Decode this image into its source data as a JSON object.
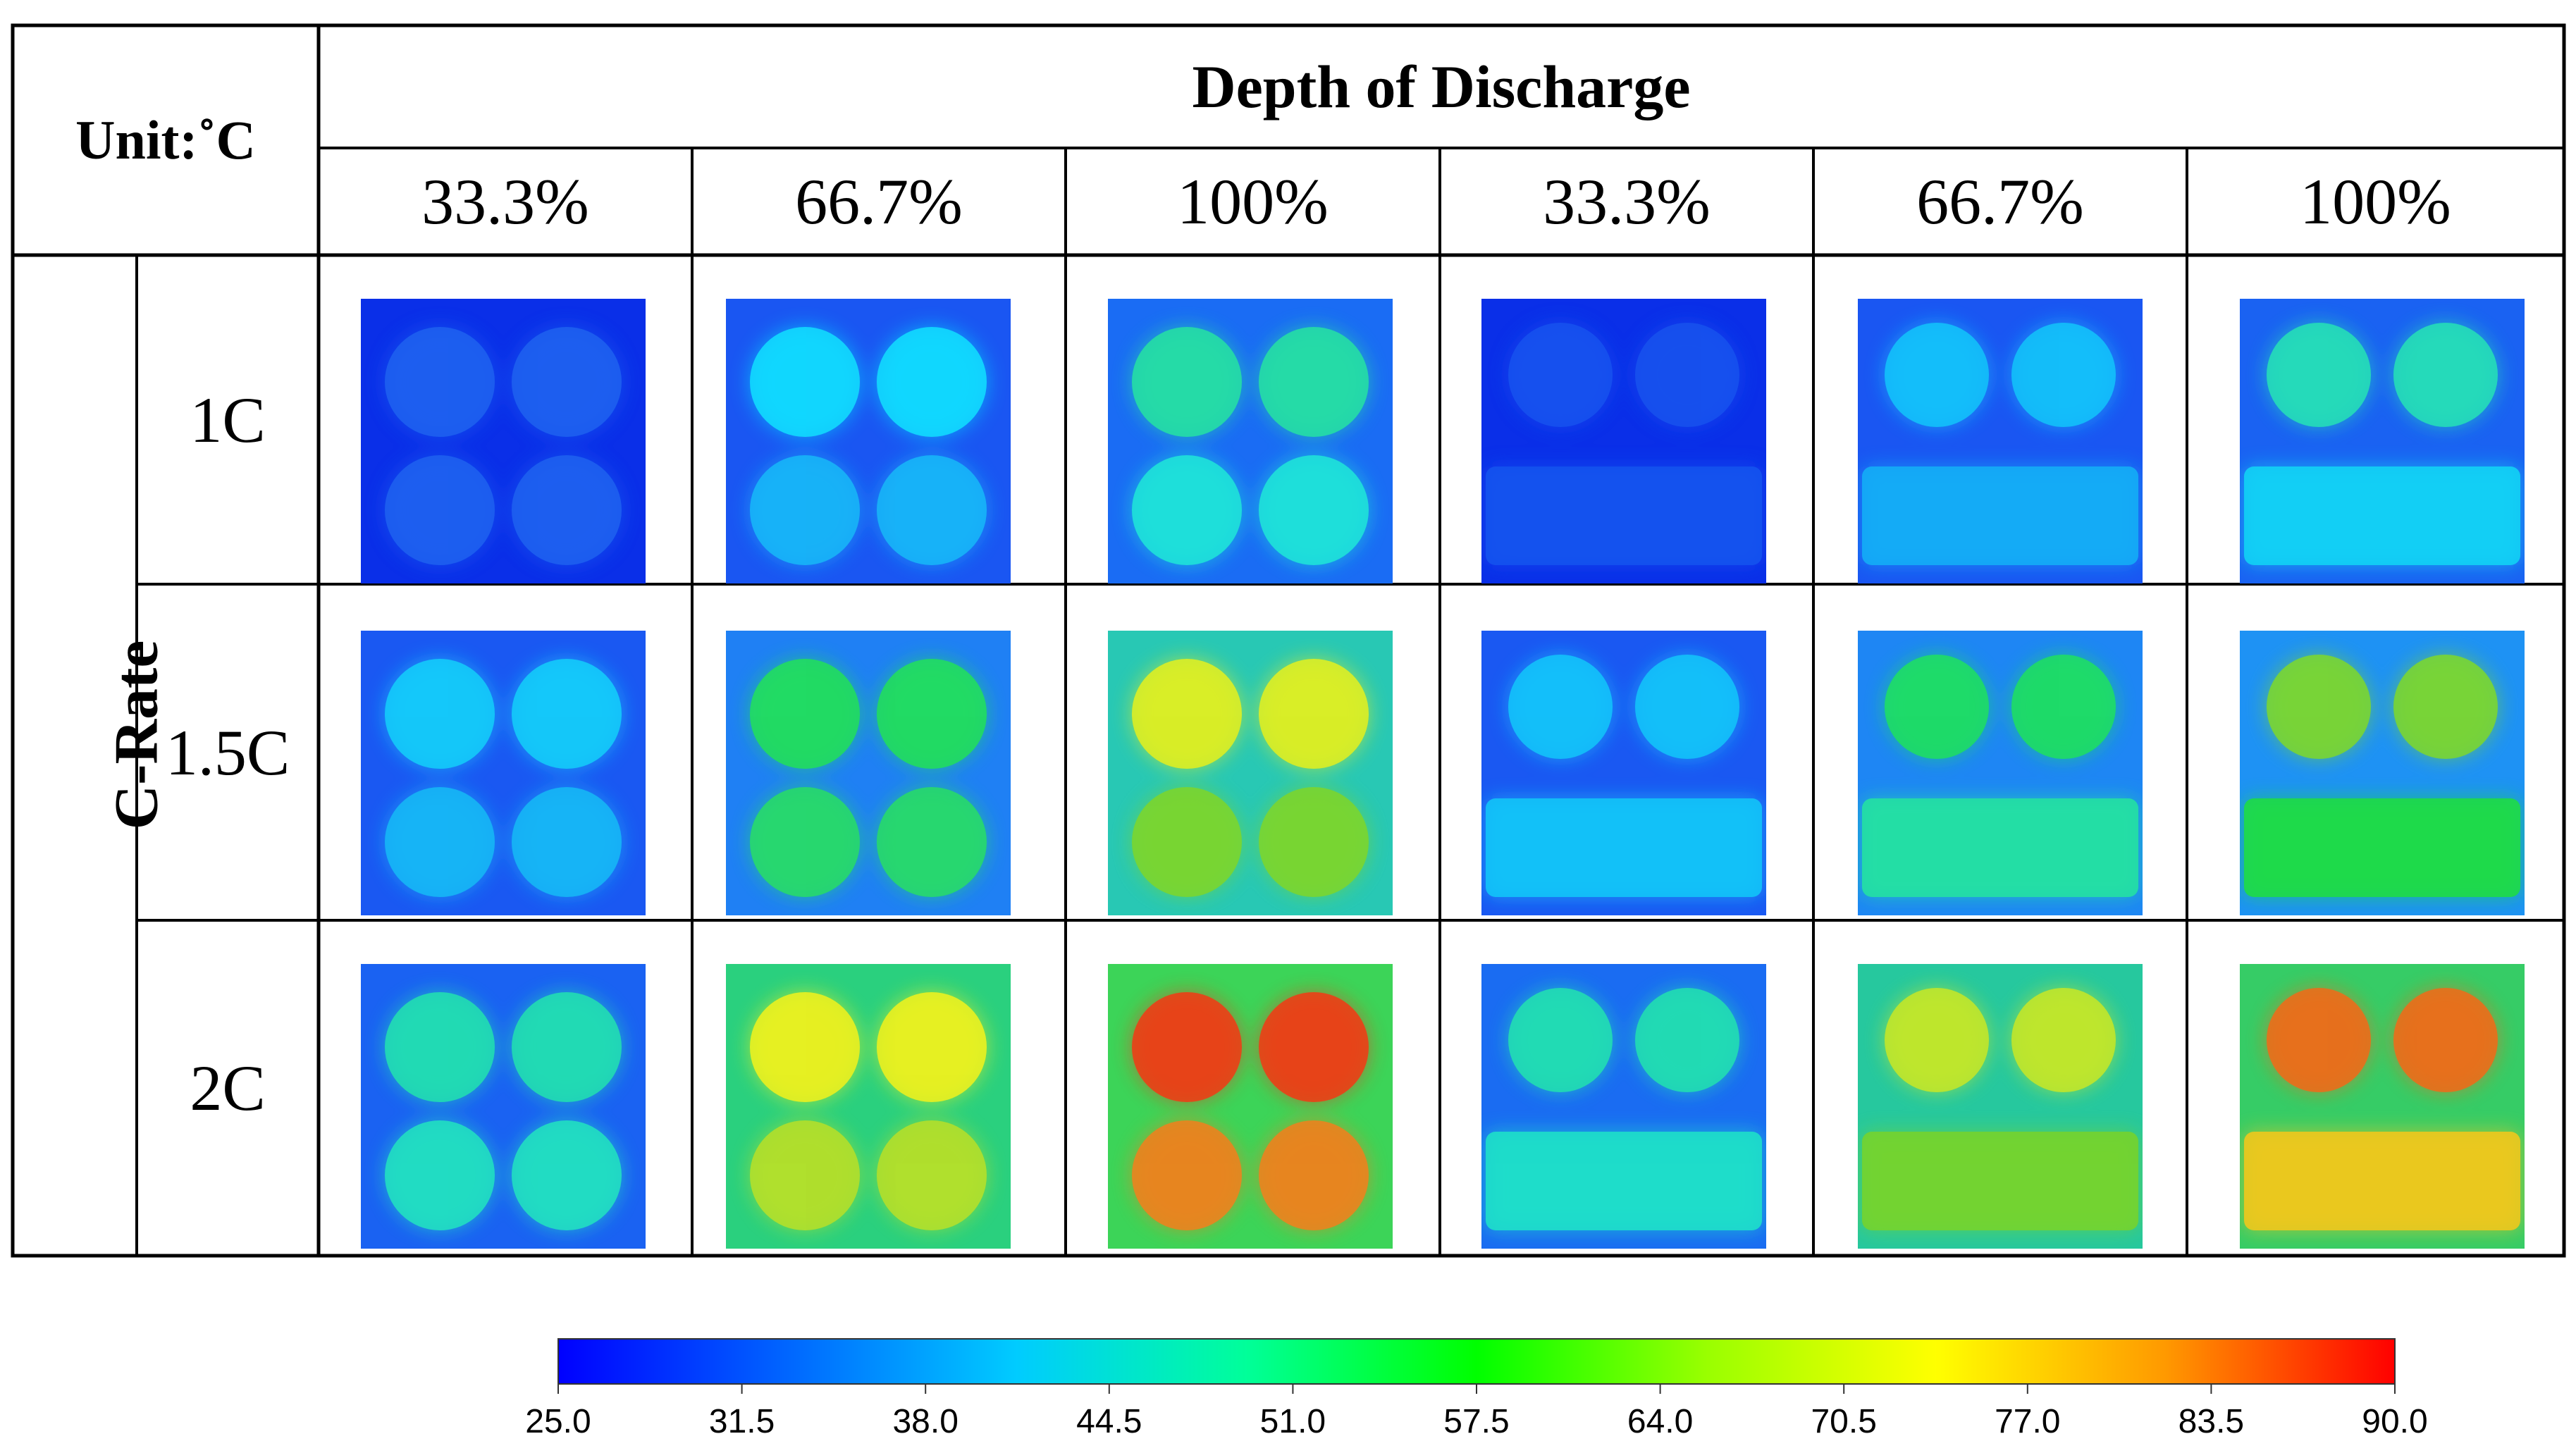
{
  "unit_label": "Unit:˚C",
  "column_group_title": "Depth of Discharge",
  "row_group_title": "C-Rate",
  "columns": [
    "33.3%",
    "66.7%",
    "100%",
    "33.3%",
    "66.7%",
    "100%"
  ],
  "rows": [
    "1C",
    "1.5C",
    "2C"
  ],
  "temperature_grid": [
    {
      "c_rate": "1C",
      "layout": "four-cell",
      "dod": "33.3%",
      "background": "#0a2fe8",
      "upper_cells": "#1e62f0",
      "lower_cells": "#1e62f0"
    },
    {
      "c_rate": "1C",
      "layout": "four-cell",
      "dod": "66.7%",
      "background": "#1a56f2",
      "upper_cells": "#11dfff",
      "lower_cells": "#18b8f8"
    },
    {
      "c_rate": "1C",
      "layout": "four-cell",
      "dod": "100%",
      "background": "#1a6cf4",
      "upper_cells": "#26e2a2",
      "lower_cells": "#1ee6d8"
    },
    {
      "c_rate": "1C",
      "layout": "slab",
      "dod": "33.3%",
      "background": "#0a2fe8",
      "upper_cells": "#1852ee",
      "lower_cells": "#1555ef"
    },
    {
      "c_rate": "1C",
      "layout": "slab",
      "dod": "66.7%",
      "background": "#1a56f2",
      "upper_cells": "#13c4fa",
      "lower_cells": "#14b0f6"
    },
    {
      "c_rate": "1C",
      "layout": "slab",
      "dod": "100%",
      "background": "#1a62f2",
      "upper_cells": "#26e2b6",
      "lower_cells": "#12d6f4"
    },
    {
      "c_rate": "1.5C",
      "layout": "four-cell",
      "dod": "33.3%",
      "background": "#1a58f2",
      "upper_cells": "#14cffa",
      "lower_cells": "#16baf6"
    },
    {
      "c_rate": "1.5C",
      "layout": "four-cell",
      "dod": "66.7%",
      "background": "#1f80f4",
      "upper_cells": "#22e05a",
      "lower_cells": "#28dd66"
    },
    {
      "c_rate": "1.5C",
      "layout": "four-cell",
      "dod": "100%",
      "background": "#28c8b4",
      "upper_cells": "#e4f01e",
      "lower_cells": "#7ed62a"
    },
    {
      "c_rate": "1.5C",
      "layout": "slab",
      "dod": "33.3%",
      "background": "#1a58f2",
      "upper_cells": "#13c6fa",
      "lower_cells": "#12c8f8"
    },
    {
      "c_rate": "1.5C",
      "layout": "slab",
      "dod": "66.7%",
      "background": "#1e86f4",
      "upper_cells": "#1ee060",
      "lower_cells": "#24e4a0"
    },
    {
      "c_rate": "1.5C",
      "layout": "slab",
      "dod": "100%",
      "background": "#1e92f4",
      "upper_cells": "#7ed82c",
      "lower_cells": "#1ede40"
    },
    {
      "c_rate": "2C",
      "layout": "four-cell",
      "dod": "33.3%",
      "background": "#1a62f2",
      "upper_cells": "#22e2b0",
      "lower_cells": "#22e4c0"
    },
    {
      "c_rate": "2C",
      "layout": "four-cell",
      "dod": "66.7%",
      "background": "#2ad07e",
      "upper_cells": "#f2f21c",
      "lower_cells": "#b8e028"
    },
    {
      "c_rate": "2C",
      "layout": "four-cell",
      "dod": "100%",
      "background": "#3cd458",
      "upper_cells": "#f23a14",
      "lower_cells": "#f2801c"
    },
    {
      "c_rate": "2C",
      "layout": "slab",
      "dod": "33.3%",
      "background": "#1a6cf2",
      "upper_cells": "#22e2b0",
      "lower_cells": "#1ee4c8"
    },
    {
      "c_rate": "2C",
      "layout": "slab",
      "dod": "66.7%",
      "background": "#26c89e",
      "upper_cells": "#c8e826",
      "lower_cells": "#78d42a"
    },
    {
      "c_rate": "2C",
      "layout": "slab",
      "dod": "100%",
      "background": "#36cc66",
      "upper_cells": "#f26a18",
      "lower_cells": "#f6c81a"
    }
  ],
  "colorbar": {
    "min": 25.0,
    "max": 90.0,
    "ticks": [
      "25.0",
      "31.5",
      "38.0",
      "44.5",
      "51.0",
      "57.5",
      "64.0",
      "70.5",
      "77.0",
      "83.5",
      "90.0"
    ],
    "stops": [
      "#0000ff",
      "#0066ff",
      "#00ccff",
      "#00ff99",
      "#00ff00",
      "#99ff00",
      "#ffff00",
      "#ff9900",
      "#ff0000"
    ]
  }
}
